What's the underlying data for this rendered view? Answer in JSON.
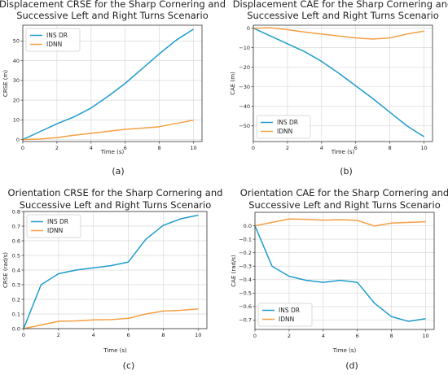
{
  "colors": {
    "series_1": "#1f9ccc",
    "series_2": "#f5a043",
    "grid": "#d9d9d9",
    "axis": "#333333"
  },
  "chart_data": [
    {
      "type": "line",
      "title_lines": [
        "Displacement CRSE for the Sharp Cornering and",
        "Successive Left and Right Turns Scenario"
      ],
      "xlabel": "Time (s)",
      "ylabel": "CRSE (m)",
      "caption": "(a)",
      "legend_position": "top-left",
      "grid": true,
      "xlim": [
        0,
        10.5
      ],
      "ylim": [
        -1,
        58
      ],
      "xticks": [
        0,
        2,
        4,
        6,
        8,
        10
      ],
      "xtick_labels": [
        "0",
        "2",
        "4",
        "6",
        "8",
        "10"
      ],
      "yticks": [
        0,
        10,
        20,
        30,
        40,
        50
      ],
      "ytick_labels": [
        "0",
        "10",
        "20",
        "30",
        "40",
        "50"
      ],
      "x": [
        0,
        1,
        2,
        3,
        4,
        5,
        6,
        7,
        8,
        9,
        10
      ],
      "series": [
        {
          "name": "INS DR",
          "values": [
            0,
            4,
            8,
            11.5,
            16,
            22,
            28.5,
            36,
            43.5,
            50.5,
            56
          ]
        },
        {
          "name": "IDNN",
          "values": [
            0,
            0.3,
            1,
            2.2,
            3.2,
            4.2,
            5.2,
            5.8,
            6.5,
            8.2,
            9.8
          ]
        }
      ]
    },
    {
      "type": "line",
      "title_lines": [
        "Displacement CAE for the Sharp Cornering and",
        "Successive Left and Right Turns Scenario"
      ],
      "xlabel": "Time (s)",
      "ylabel": "CAE (m)",
      "caption": "(b)",
      "legend_position": "bottom-left",
      "grid": true,
      "xlim": [
        0,
        10.5
      ],
      "ylim": [
        -58,
        1.5
      ],
      "xticks": [
        0,
        2,
        4,
        6,
        8,
        10
      ],
      "xtick_labels": [
        "0",
        "2",
        "4",
        "6",
        "8",
        "10"
      ],
      "yticks": [
        0,
        -10,
        -20,
        -30,
        -40,
        -50
      ],
      "ytick_labels": [
        "0",
        "−10",
        "−20",
        "−30",
        "−40",
        "−50"
      ],
      "x": [
        0,
        1,
        2,
        3,
        4,
        5,
        6,
        7,
        8,
        9,
        10
      ],
      "series": [
        {
          "name": "INS DR",
          "values": [
            0,
            -4,
            -8,
            -12,
            -17,
            -23,
            -29.5,
            -36,
            -43,
            -50,
            -55.5
          ]
        },
        {
          "name": "IDNN",
          "values": [
            0,
            0.2,
            -0.8,
            -2,
            -3,
            -4,
            -5,
            -5.6,
            -5,
            -3,
            -1.5
          ]
        }
      ]
    },
    {
      "type": "line",
      "title_lines": [
        "Orientation CRSE for the Sharp Cornering and",
        "Successive Left and Right Turns Scenario"
      ],
      "xlabel": "Time (s)",
      "ylabel": "CRSE (rad/s)",
      "caption": "(c)",
      "legend_position": "top-left",
      "grid": true,
      "xlim": [
        0,
        10.5
      ],
      "ylim": [
        0,
        0.8
      ],
      "xticks": [
        0,
        2,
        4,
        6,
        8,
        10
      ],
      "xtick_labels": [
        "0",
        "2",
        "4",
        "6",
        "8",
        "10"
      ],
      "yticks": [
        0,
        0.1,
        0.2,
        0.3,
        0.4,
        0.5,
        0.6,
        0.7,
        0.8
      ],
      "ytick_labels": [
        "0.0",
        "0.1",
        "0.2",
        "0.3",
        "0.4",
        "0.5",
        "0.6",
        "0.7",
        "0.8"
      ],
      "x": [
        0,
        1,
        2,
        3,
        4,
        5,
        6,
        7,
        8,
        9,
        10
      ],
      "series": [
        {
          "name": "INS DR",
          "values": [
            0,
            0.3,
            0.375,
            0.4,
            0.415,
            0.43,
            0.455,
            0.61,
            0.705,
            0.75,
            0.775
          ]
        },
        {
          "name": "IDNN",
          "values": [
            0,
            0.025,
            0.05,
            0.053,
            0.06,
            0.062,
            0.07,
            0.1,
            0.12,
            0.125,
            0.135
          ]
        }
      ]
    },
    {
      "type": "line",
      "title_lines": [
        "Orientation CAE for the Sharp Cornering and",
        "Successive Left and Right Turns Scenario"
      ],
      "xlabel": "Time (s)",
      "ylabel": "CAE (rad/s)",
      "caption": "(d)",
      "legend_position": "bottom-left",
      "grid": true,
      "xlim": [
        0,
        10.5
      ],
      "ylim": [
        -0.77,
        0.1
      ],
      "xticks": [
        0,
        2,
        4,
        6,
        8,
        10
      ],
      "xtick_labels": [
        "0",
        "2",
        "4",
        "6",
        "8",
        "10"
      ],
      "yticks": [
        0,
        -0.1,
        -0.2,
        -0.3,
        -0.4,
        -0.5,
        -0.6,
        -0.7
      ],
      "ytick_labels": [
        "0.0",
        "−0.1",
        "−0.2",
        "−0.3",
        "−0.4",
        "−0.5",
        "−0.6",
        "−0.7"
      ],
      "x": [
        0,
        1,
        2,
        3,
        4,
        5,
        6,
        7,
        8,
        9,
        10
      ],
      "series": [
        {
          "name": "INS DR",
          "values": [
            0,
            -0.3,
            -0.375,
            -0.405,
            -0.42,
            -0.405,
            -0.42,
            -0.575,
            -0.675,
            -0.71,
            -0.69
          ]
        },
        {
          "name": "IDNN",
          "values": [
            0,
            0.025,
            0.05,
            0.048,
            0.042,
            0.045,
            0.04,
            -0.002,
            0.02,
            0.025,
            0.03
          ]
        }
      ]
    }
  ]
}
